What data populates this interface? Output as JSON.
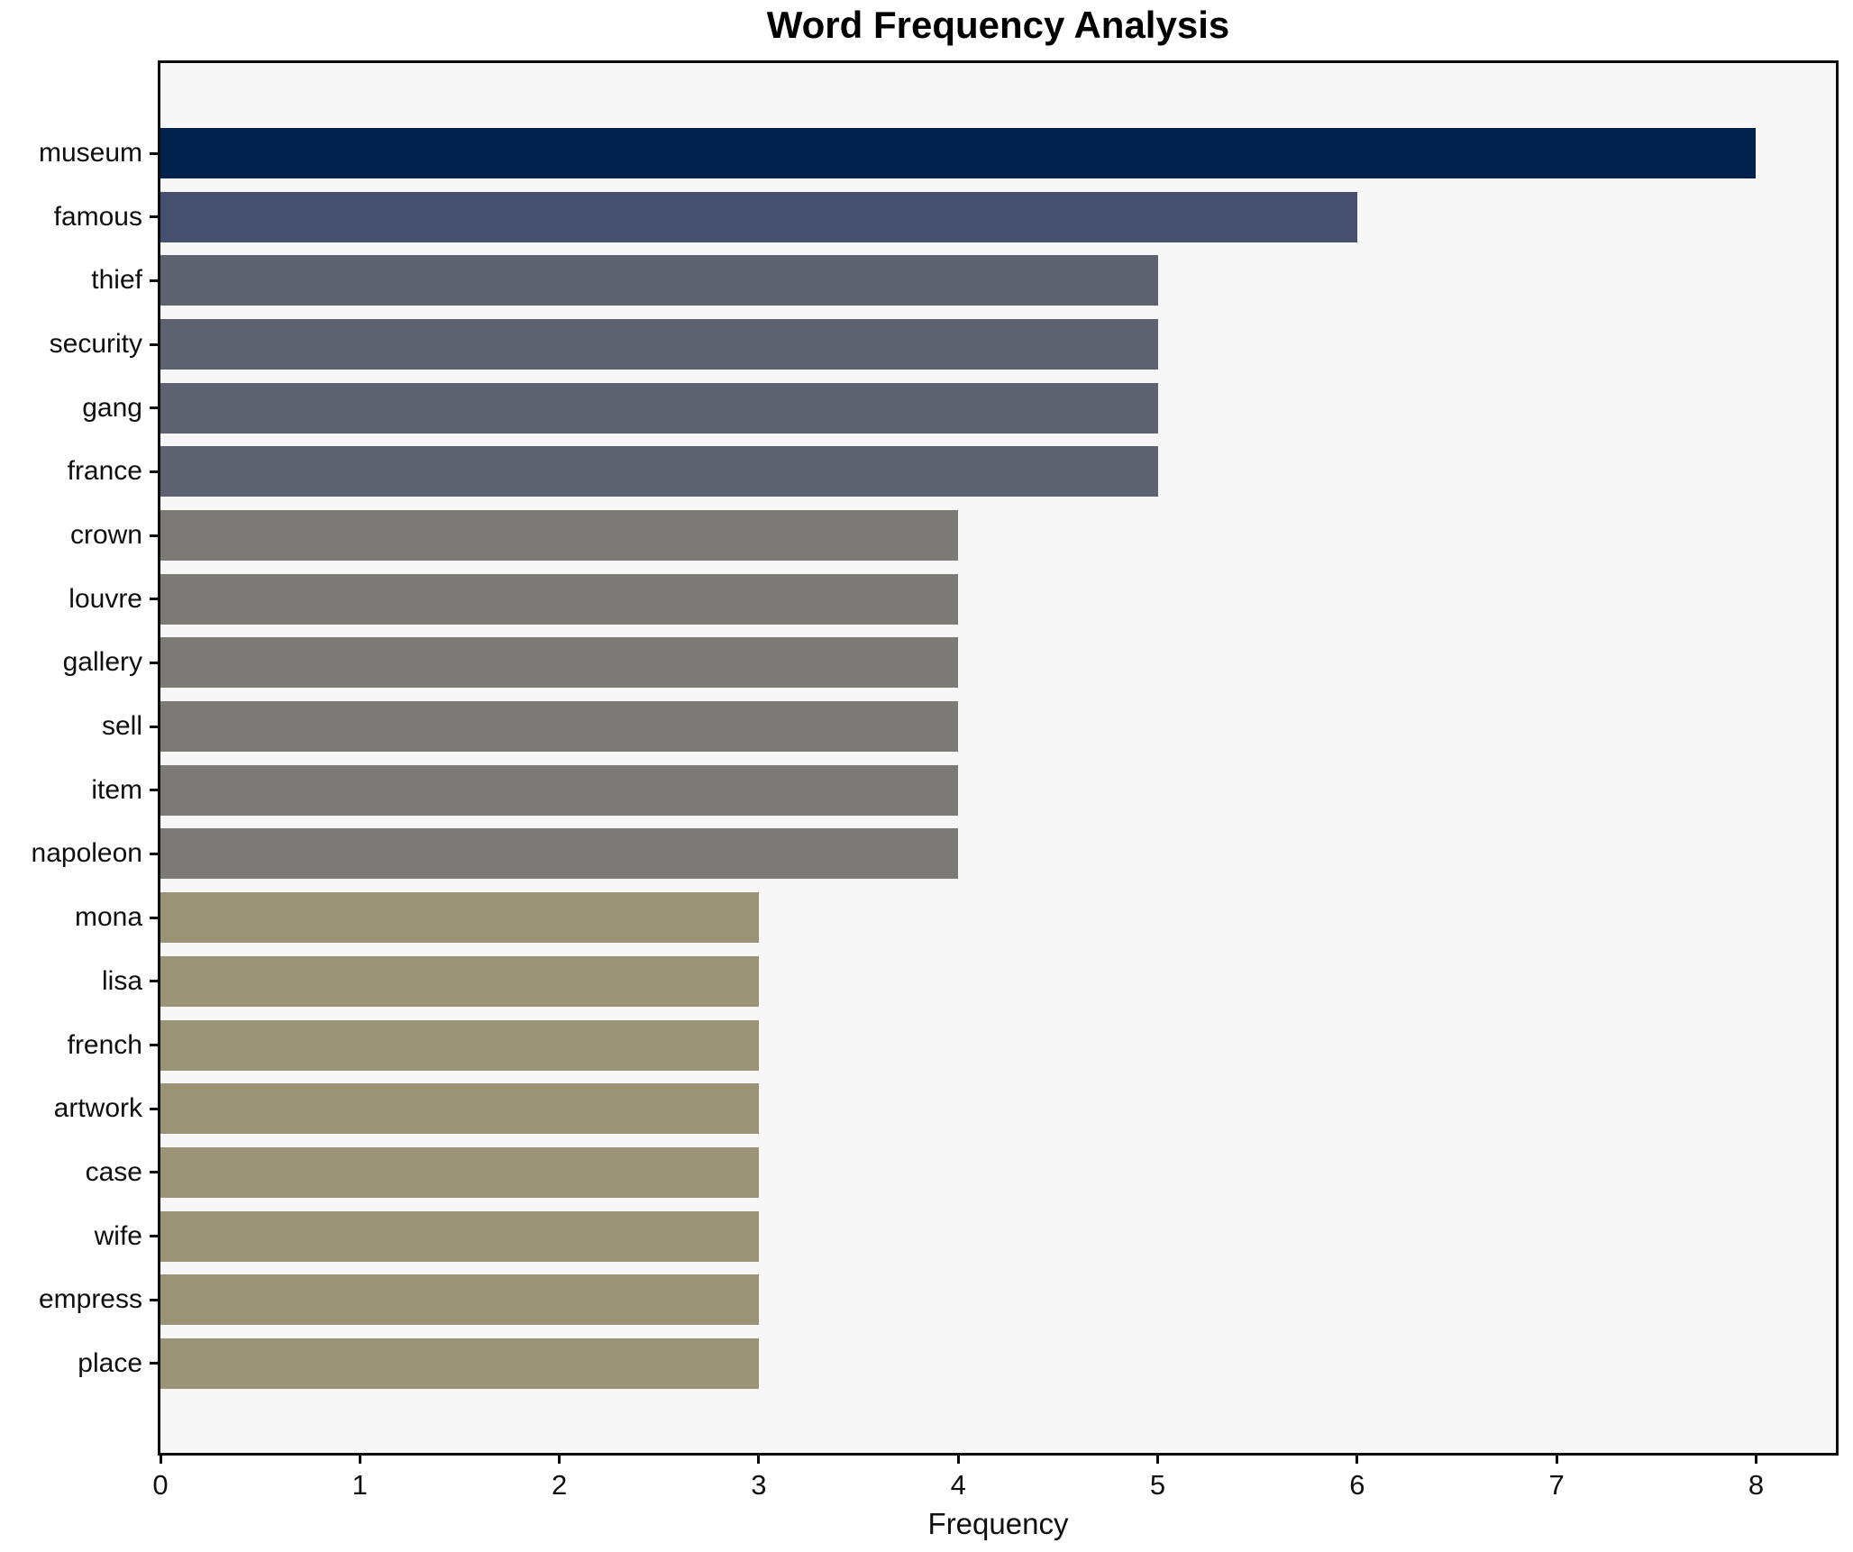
{
  "chart_data": {
    "type": "bar",
    "orientation": "horizontal",
    "title": "Word Frequency Analysis",
    "xlabel": "Frequency",
    "ylabel": "",
    "categories": [
      "museum",
      "famous",
      "thief",
      "security",
      "gang",
      "france",
      "crown",
      "louvre",
      "gallery",
      "sell",
      "item",
      "napoleon",
      "mona",
      "lisa",
      "french",
      "artwork",
      "case",
      "wife",
      "empress",
      "place"
    ],
    "values": [
      8,
      6,
      5,
      5,
      5,
      5,
      4,
      4,
      4,
      4,
      4,
      4,
      3,
      3,
      3,
      3,
      3,
      3,
      3,
      3
    ],
    "bar_colors": [
      "#01224d",
      "#45506e",
      "#5d6270",
      "#5d6270",
      "#5d6270",
      "#5d6270",
      "#7b7a75",
      "#7b7a75",
      "#7b7a75",
      "#7b7a75",
      "#7b7a75",
      "#7b7a75",
      "#9a9375",
      "#9a9375",
      "#9a9375",
      "#9a9375",
      "#9a9375",
      "#9a9375",
      "#9a9375",
      "#9a9375"
    ],
    "x_ticks": [
      0,
      1,
      2,
      3,
      4,
      5,
      6,
      7,
      8
    ],
    "xlim": [
      0,
      8.4
    ],
    "grid": false,
    "legend": null,
    "plot_background": "#f7f7f7",
    "figure_background": "#ffffff",
    "spine_color": "#0d0d0d"
  }
}
